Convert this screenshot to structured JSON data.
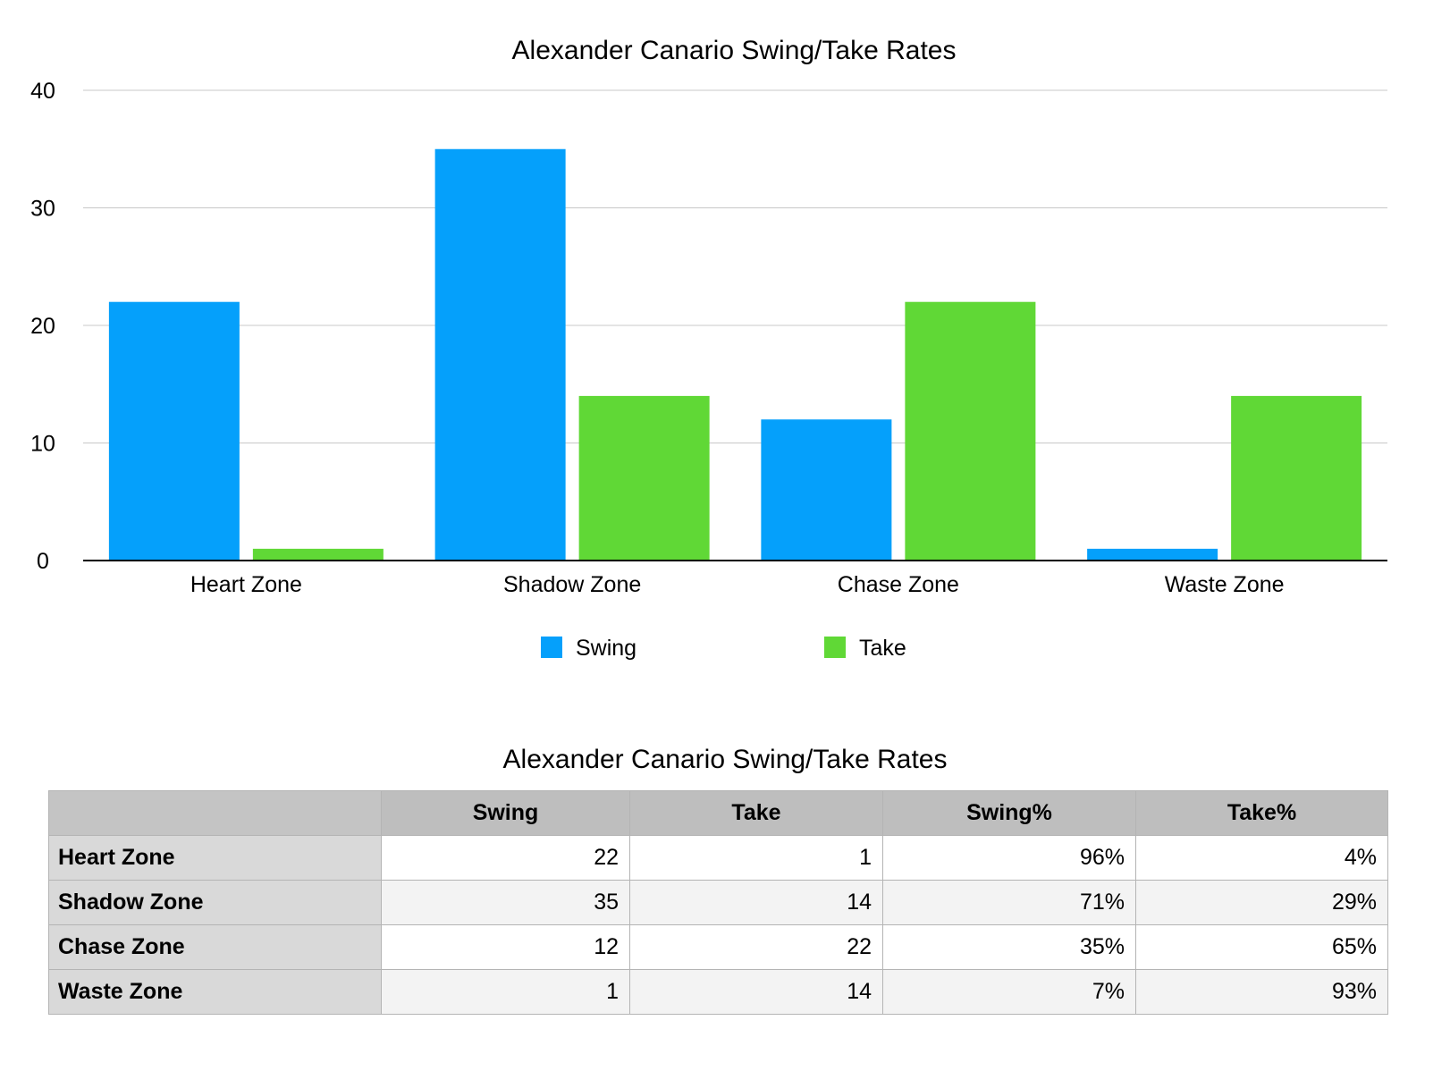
{
  "chart_data": {
    "type": "bar",
    "title": "Alexander Canario Swing/Take Rates",
    "categories": [
      "Heart Zone",
      "Shadow Zone",
      "Chase Zone",
      "Waste Zone"
    ],
    "series": [
      {
        "name": "Swing",
        "color": "#05a0fb",
        "values": [
          22,
          35,
          12,
          1
        ]
      },
      {
        "name": "Take",
        "color": "#60d836",
        "values": [
          1,
          14,
          22,
          14
        ]
      }
    ],
    "ylim": [
      0,
      40
    ],
    "yticks": [
      0,
      10,
      20,
      30,
      40
    ],
    "xlabel": "",
    "ylabel": "",
    "grid": true,
    "legend": "bottom-center"
  },
  "table": {
    "title": "Alexander Canario Swing/Take Rates",
    "columns": [
      "",
      "Swing",
      "Take",
      "Swing%",
      "Take%"
    ],
    "rows": [
      {
        "label": "Heart Zone",
        "cells": [
          "22",
          "1",
          "96%",
          "4%"
        ]
      },
      {
        "label": "Shadow Zone",
        "cells": [
          "35",
          "14",
          "71%",
          "29%"
        ]
      },
      {
        "label": "Chase Zone",
        "cells": [
          "12",
          "22",
          "35%",
          "65%"
        ]
      },
      {
        "label": "Waste Zone",
        "cells": [
          "1",
          "14",
          "7%",
          "93%"
        ]
      }
    ]
  }
}
